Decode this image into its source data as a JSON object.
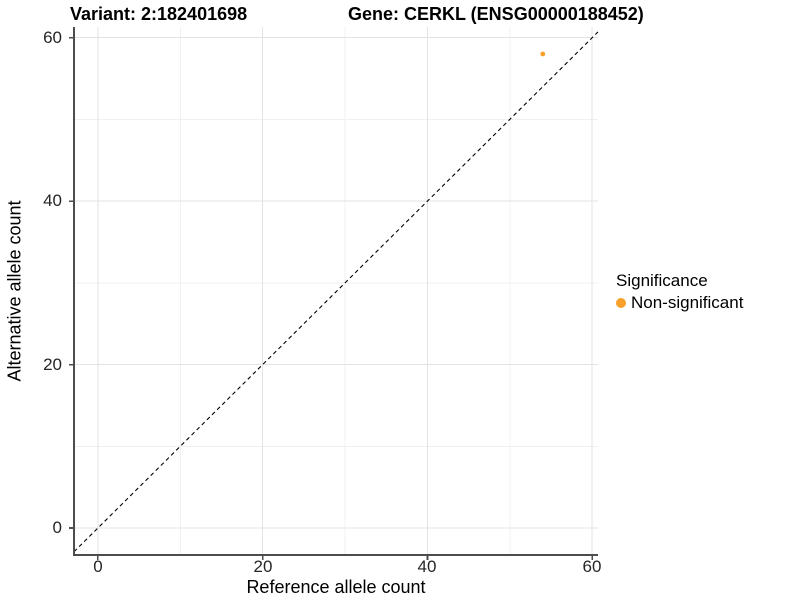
{
  "chart_data": {
    "type": "scatter",
    "titles": {
      "left": "Variant: 2:182401698",
      "right": "Gene: CERKL (ENSG00000188452)"
    },
    "xlabel": "Reference allele count",
    "ylabel": "Alternative allele count",
    "xlim": [
      -2.9,
      60.7
    ],
    "ylim": [
      -3.3,
      61.3
    ],
    "x_ticks": [
      0,
      20,
      40,
      60
    ],
    "y_ticks": [
      0,
      20,
      40,
      60
    ],
    "x_minor_ticks": [
      10,
      30,
      50
    ],
    "y_minor_ticks": [
      10,
      30,
      50
    ],
    "grid": "on",
    "points": [
      {
        "x": 54,
        "y": 58,
        "series": "Non-significant"
      }
    ],
    "identity_line": {
      "slope": 1,
      "intercept": 0,
      "style": "dashed"
    },
    "legend": {
      "title": "Significance",
      "position": "right",
      "entries": [
        {
          "label": "Non-significant",
          "color": "#F8A029"
        }
      ]
    },
    "colors": {
      "point": "#F8A029",
      "grid_major": "#e3e3e3",
      "grid_minor": "#f0f0f0",
      "axis": "#4d4d4d",
      "reference_line": "#000000"
    }
  }
}
